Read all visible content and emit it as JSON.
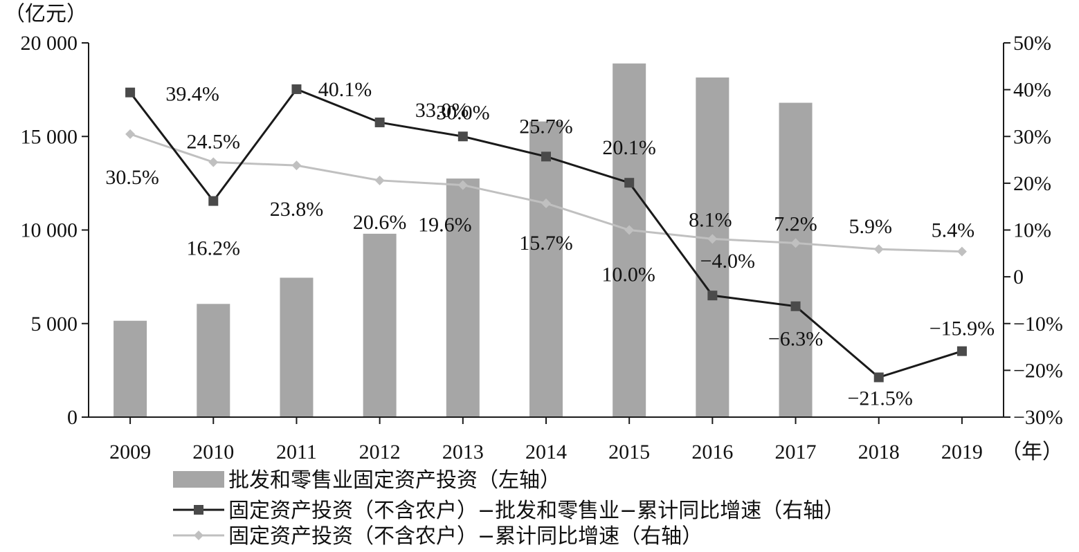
{
  "chart_data": {
    "type": "bar",
    "categories": [
      "2009",
      "2010",
      "2011",
      "2012",
      "2013",
      "2014",
      "2015",
      "2016",
      "2017",
      "2018",
      "2019"
    ],
    "y_left_label": "（亿元）",
    "x_unit_label": "（年）",
    "y_left_lim": [
      0,
      20000
    ],
    "y_left_ticks": [
      0,
      5000,
      10000,
      15000,
      20000
    ],
    "y_left_tick_labels": [
      "0",
      "5 000",
      "10 000",
      "15 000",
      "20 000"
    ],
    "y_right_lim": [
      -30,
      50
    ],
    "y_right_ticks": [
      -30,
      -20,
      -10,
      0,
      10,
      20,
      30,
      40,
      50
    ],
    "y_right_tick_labels": [
      "−30%",
      "−20%",
      "−10%",
      "0",
      "10%",
      "20%",
      "30%",
      "40%",
      "50%"
    ],
    "grid": false,
    "legend_position": "bottom",
    "series": [
      {
        "name": "批发和零售业固定资产投资（左轴）",
        "type": "bar",
        "axis": "left",
        "color": "#a6a6a6",
        "values": [
          5150,
          6050,
          7450,
          9800,
          12750,
          15800,
          18900,
          18150,
          16800,
          null,
          null
        ]
      },
      {
        "name": "固定资产投资（不含农户）−批发和零售业−累计同比增速（右轴）",
        "type": "line",
        "axis": "right",
        "color": "#1a1a1a",
        "marker": "square",
        "values": [
          39.4,
          16.2,
          40.1,
          33.0,
          30.0,
          25.7,
          20.1,
          -4.0,
          -6.3,
          -21.5,
          -15.9
        ],
        "labels": [
          "39.4%",
          "16.2%",
          "40.1%",
          "33.0%",
          "30.0%",
          "25.7%",
          "20.1%",
          "−4.0%",
          "−6.3%",
          "−21.5%",
          "−15.9%"
        ]
      },
      {
        "name": "固定资产投资（不含农户）−累计同比增速（右轴）",
        "type": "line",
        "axis": "right",
        "color": "#c0c0c0",
        "marker": "diamond",
        "values": [
          30.5,
          24.5,
          23.8,
          20.6,
          19.6,
          15.7,
          10.0,
          8.1,
          7.2,
          5.9,
          5.4
        ],
        "labels": [
          "30.5%",
          "24.5%",
          "23.8%",
          "20.6%",
          "19.6%",
          "15.7%",
          "10.0%",
          "8.1%",
          "7.2%",
          "5.9%",
          "5.4%"
        ]
      }
    ]
  }
}
